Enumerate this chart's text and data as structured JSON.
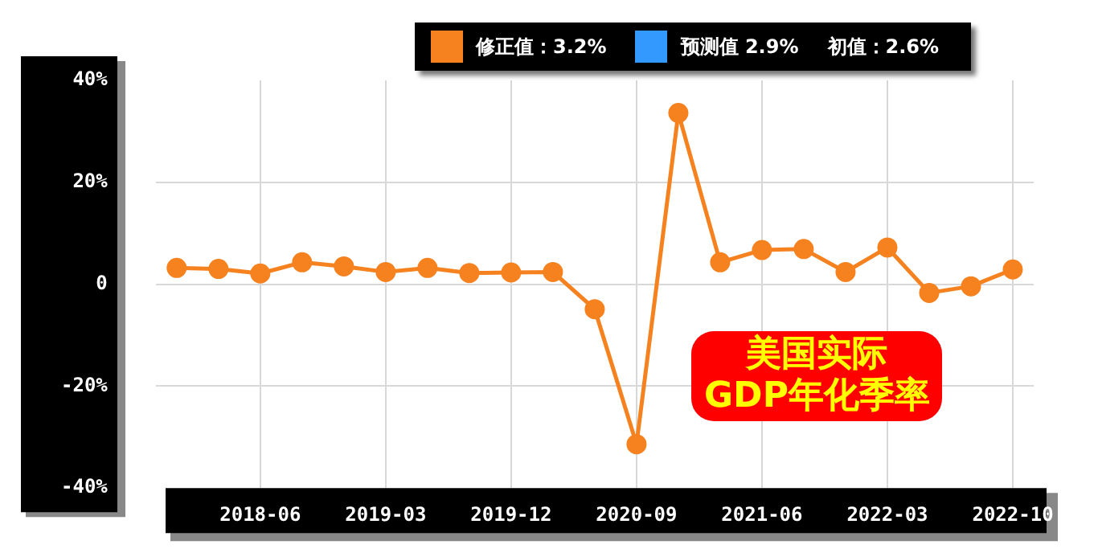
{
  "chart_data": {
    "type": "line",
    "title": "美国实际\nGDP年化季率",
    "annotations": [
      "修正值：3.2%",
      "预测值 2.9%",
      "初值：2.6%"
    ],
    "categories": [
      null,
      null,
      "2018-06",
      null,
      null,
      "2019-03",
      null,
      null,
      "2019-12",
      null,
      null,
      "2020-09",
      null,
      null,
      "2021-06",
      null,
      null,
      "2022-03",
      null,
      null,
      "2022-10"
    ],
    "series": [
      {
        "color": "#f5821f",
        "values": [
          3.2,
          3.0,
          2.1,
          4.3,
          3.5,
          2.4,
          3.2,
          2.2,
          2.3,
          2.4,
          -4.9,
          -31.4,
          33.6,
          4.3,
          6.7,
          6.9,
          2.4,
          7.2,
          -1.7,
          -0.4,
          2.9
        ]
      }
    ],
    "ylim": [
      -40,
      40
    ],
    "yticks": [
      {
        "value": 40,
        "label": "40%"
      },
      {
        "value": 20,
        "label": "20%"
      },
      0,
      {
        "value": -20,
        "label": "-20%"
      },
      {
        "value": -40,
        "label": "-40%"
      }
    ],
    "grid": true,
    "legend": false,
    "marker": "circle",
    "line_style": "solid"
  }
}
